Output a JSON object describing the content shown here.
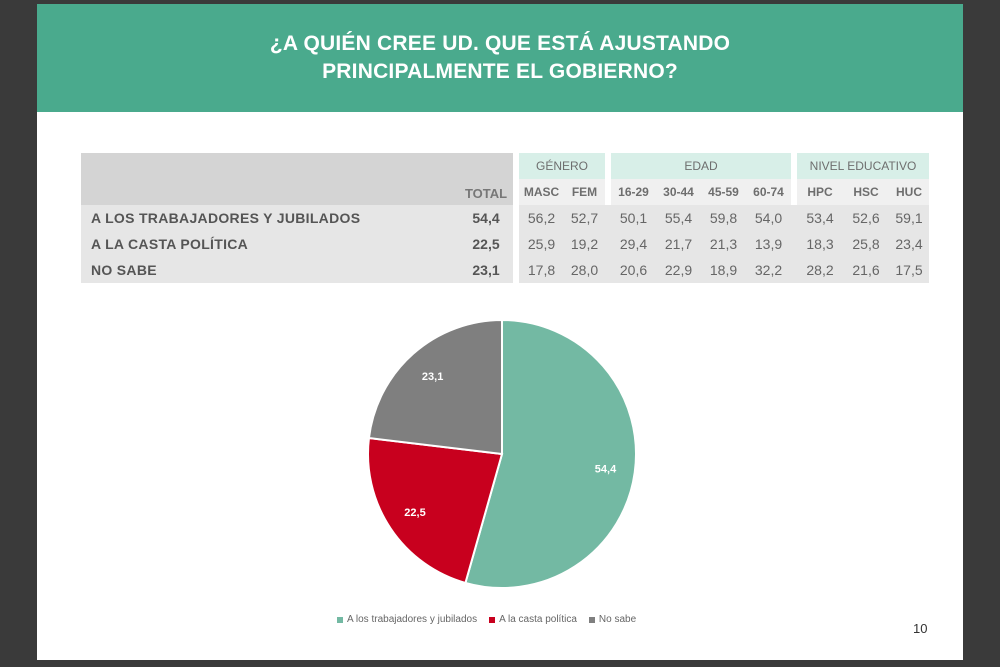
{
  "title": {
    "line1": "¿A QUIÉN CREE UD. QUE ESTÁ AJUSTANDO",
    "line2": "PRINCIPALMENTE EL GOBIERNO?"
  },
  "table": {
    "total_label": "TOTAL",
    "groups": [
      {
        "label": "GÉNERO",
        "columns": [
          "MASC",
          "FEM"
        ]
      },
      {
        "label": "EDAD",
        "columns": [
          "16-29",
          "30-44",
          "45-59",
          "60-74"
        ]
      },
      {
        "label": "NIVEL EDUCATIVO",
        "columns": [
          "HPC",
          "HSC",
          "HUC"
        ]
      }
    ],
    "rows": [
      {
        "label": "A LOS TRABAJADORES Y JUBILADOS",
        "total": "54,4",
        "values": [
          "56,2",
          "52,7",
          "50,1",
          "55,4",
          "59,8",
          "54,0",
          "53,4",
          "52,6",
          "59,1"
        ]
      },
      {
        "label": "A LA CASTA POLÍTICA",
        "total": "22,5",
        "values": [
          "25,9",
          "19,2",
          "29,4",
          "21,7",
          "21,3",
          "13,9",
          "18,3",
          "25,8",
          "23,4"
        ]
      },
      {
        "label": "NO SABE",
        "total": "23,1",
        "values": [
          "17,8",
          "28,0",
          "20,6",
          "22,9",
          "18,9",
          "32,2",
          "28,2",
          "21,6",
          "17,5"
        ]
      }
    ]
  },
  "chart_data": {
    "type": "pie",
    "categories": [
      "A los trabajadores y jubilados",
      "A la casta política",
      "No sabe"
    ],
    "values": [
      54.4,
      22.5,
      23.1
    ],
    "labels": [
      "54,4",
      "22,5",
      "23,1"
    ],
    "colors": [
      "#73b9a3",
      "#c8001e",
      "#7f7f7f"
    ],
    "legend_position": "bottom"
  },
  "page_number": "10"
}
